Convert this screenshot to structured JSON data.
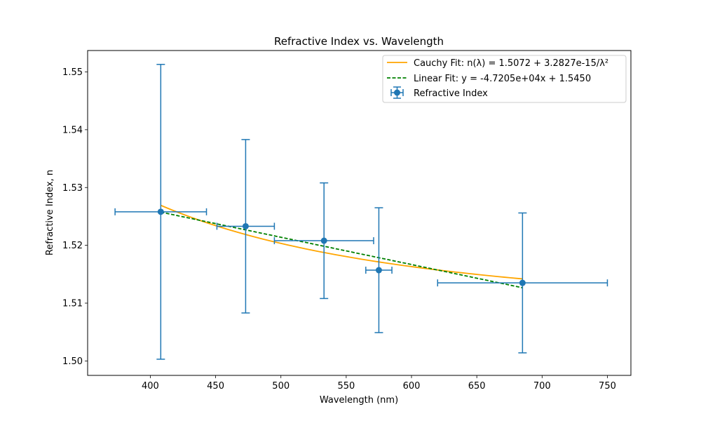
{
  "chart_data": {
    "type": "scatter",
    "title": "Refractive Index vs. Wavelength",
    "xlabel": "Wavelength (nm)",
    "ylabel": "Refractive Index, n",
    "xlim": [
      352,
      768
    ],
    "ylim": [
      1.4975,
      1.5537
    ],
    "xticks": [
      400,
      450,
      500,
      550,
      600,
      650,
      700,
      750
    ],
    "yticks": [
      1.5,
      1.51,
      1.52,
      1.53,
      1.54,
      1.55
    ],
    "ytick_labels": [
      "1.50",
      "1.51",
      "1.52",
      "1.53",
      "1.54",
      "1.55"
    ],
    "grid": false,
    "legend_position": "top-right",
    "colors": {
      "data": "#1f77b4",
      "cauchy": "#ffa500",
      "linear": "#008000"
    },
    "points": {
      "name": "Refractive Index",
      "x": [
        408,
        473,
        533,
        575,
        685
      ],
      "y": [
        1.5258,
        1.5233,
        1.5208,
        1.5157,
        1.5135
      ],
      "xerr": [
        35,
        22,
        38,
        10,
        65
      ],
      "yerr": [
        0.0255,
        0.015,
        0.01,
        0.0108,
        0.0121
      ]
    },
    "cauchy_fit": {
      "name": "Cauchy Fit: n(λ) = 1.5072 + 3.2827e-15/λ²",
      "A": 1.5072,
      "B": 3.2827e-15,
      "x_range": [
        408,
        685
      ]
    },
    "linear_fit": {
      "name": "Linear Fit: y = -4.7205e+04x + 1.5450",
      "slope": -47205,
      "intercept": 1.545,
      "x_range": [
        408,
        685
      ]
    }
  }
}
